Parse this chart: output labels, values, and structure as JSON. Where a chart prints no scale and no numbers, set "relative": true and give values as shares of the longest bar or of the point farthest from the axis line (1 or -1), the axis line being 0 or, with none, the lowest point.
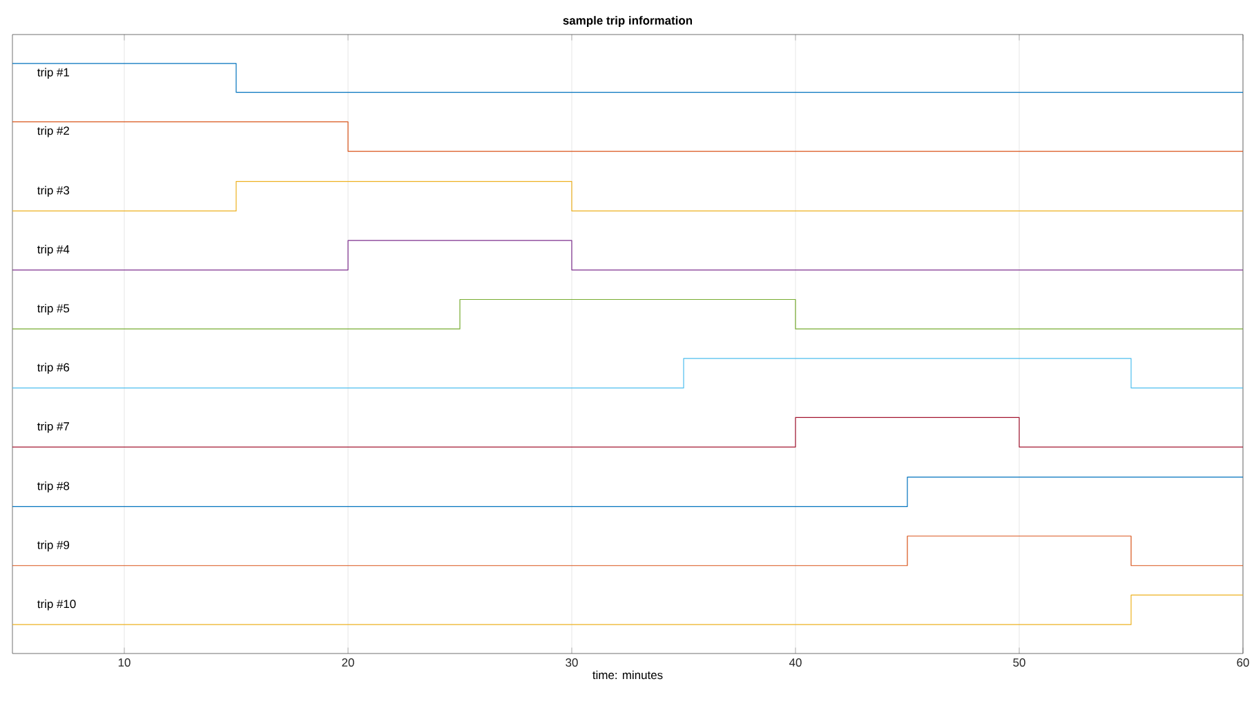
{
  "chart_data": {
    "type": "step",
    "title": "sample trip information",
    "xlabel": "time: minutes",
    "xlim": [
      5,
      60
    ],
    "xticks": [
      10,
      20,
      30,
      40,
      50,
      60
    ],
    "grid": "x",
    "relative": true,
    "tick_labels": "x",
    "series": [
      {
        "name": "trip #1",
        "color": "#0072bd",
        "x": [
          5,
          15,
          60
        ],
        "values": [
          1.0,
          0.951,
          0.951
        ]
      },
      {
        "name": "trip #2",
        "color": "#d95319",
        "x": [
          5,
          20,
          60
        ],
        "values": [
          0.901,
          0.851,
          0.851
        ]
      },
      {
        "name": "trip #3",
        "color": "#edb120",
        "x": [
          5,
          15,
          30,
          60
        ],
        "values": [
          0.75,
          0.8,
          0.75,
          0.75
        ]
      },
      {
        "name": "trip #4",
        "color": "#7e2f8e",
        "x": [
          5,
          20,
          30,
          60
        ],
        "values": [
          0.65,
          0.7,
          0.65,
          0.65
        ]
      },
      {
        "name": "trip #5",
        "color": "#77ac30",
        "x": [
          5,
          25,
          40,
          60
        ],
        "values": [
          0.55,
          0.6,
          0.55,
          0.55
        ]
      },
      {
        "name": "trip #6",
        "color": "#4dbeee",
        "x": [
          5,
          35,
          55,
          60
        ],
        "values": [
          0.45,
          0.5,
          0.45,
          0.45
        ]
      },
      {
        "name": "trip #7",
        "color": "#a2142f",
        "x": [
          5,
          40,
          50,
          60
        ],
        "values": [
          0.35,
          0.4,
          0.35,
          0.35
        ]
      },
      {
        "name": "trip #8",
        "color": "#0072bd",
        "x": [
          5,
          45,
          60
        ],
        "values": [
          0.249,
          0.299,
          0.299
        ]
      },
      {
        "name": "trip #9",
        "color": "#d95319",
        "x": [
          5,
          45,
          55,
          60
        ],
        "values": [
          0.149,
          0.199,
          0.149,
          0.149
        ]
      },
      {
        "name": "trip #10",
        "color": "#edb120",
        "x": [
          5,
          55,
          60
        ],
        "values": [
          0.049,
          0.099,
          0.099
        ]
      }
    ]
  }
}
